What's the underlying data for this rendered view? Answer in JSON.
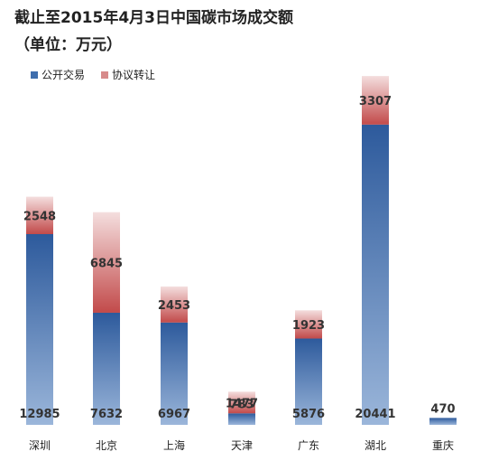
{
  "chart_data": {
    "type": "bar",
    "stacked": true,
    "title": "截止至2015年4月3日中国碳市场成交额",
    "subtitle": "（单位：万元）",
    "categories": [
      "深圳",
      "北京",
      "上海",
      "天津",
      "广东",
      "湖北",
      "重庆"
    ],
    "series": [
      {
        "name": "公开交易",
        "values": [
          12985,
          7632,
          6967,
          783,
          5876,
          20441,
          470
        ],
        "color": "#3f6ead"
      },
      {
        "name": "协议转让",
        "values": [
          2548,
          6845,
          2453,
          1477,
          1923,
          3307,
          0
        ],
        "color": "#c95a5a"
      }
    ],
    "data_labels": [
      [
        "12985",
        "7632",
        "6967",
        "783",
        "5876",
        "20441",
        "470"
      ],
      [
        "2548",
        "6845",
        "2453",
        "1477",
        "1923",
        "3307",
        ""
      ]
    ],
    "legend_position": "top-left",
    "grid": false,
    "ylim": [
      0,
      24000
    ]
  }
}
